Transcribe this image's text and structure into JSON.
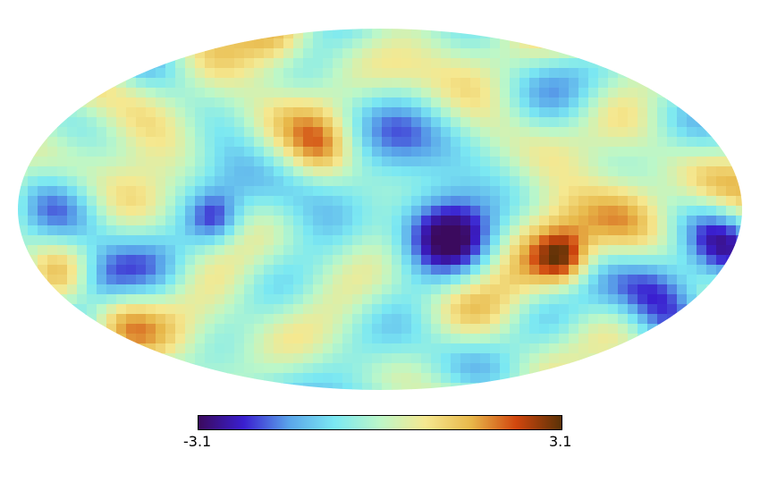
{
  "map": {
    "projection": "mollweide",
    "colormap": [
      "#3b0a5e",
      "#3a1fd0",
      "#5aa5ea",
      "#7be8f2",
      "#bcf7c8",
      "#f5e890",
      "#e8b84a",
      "#d1460e",
      "#5a3207"
    ]
  },
  "colorbar": {
    "min_label": "-3.1",
    "max_label": "3.1",
    "min": -3.1,
    "max": 3.1
  }
}
